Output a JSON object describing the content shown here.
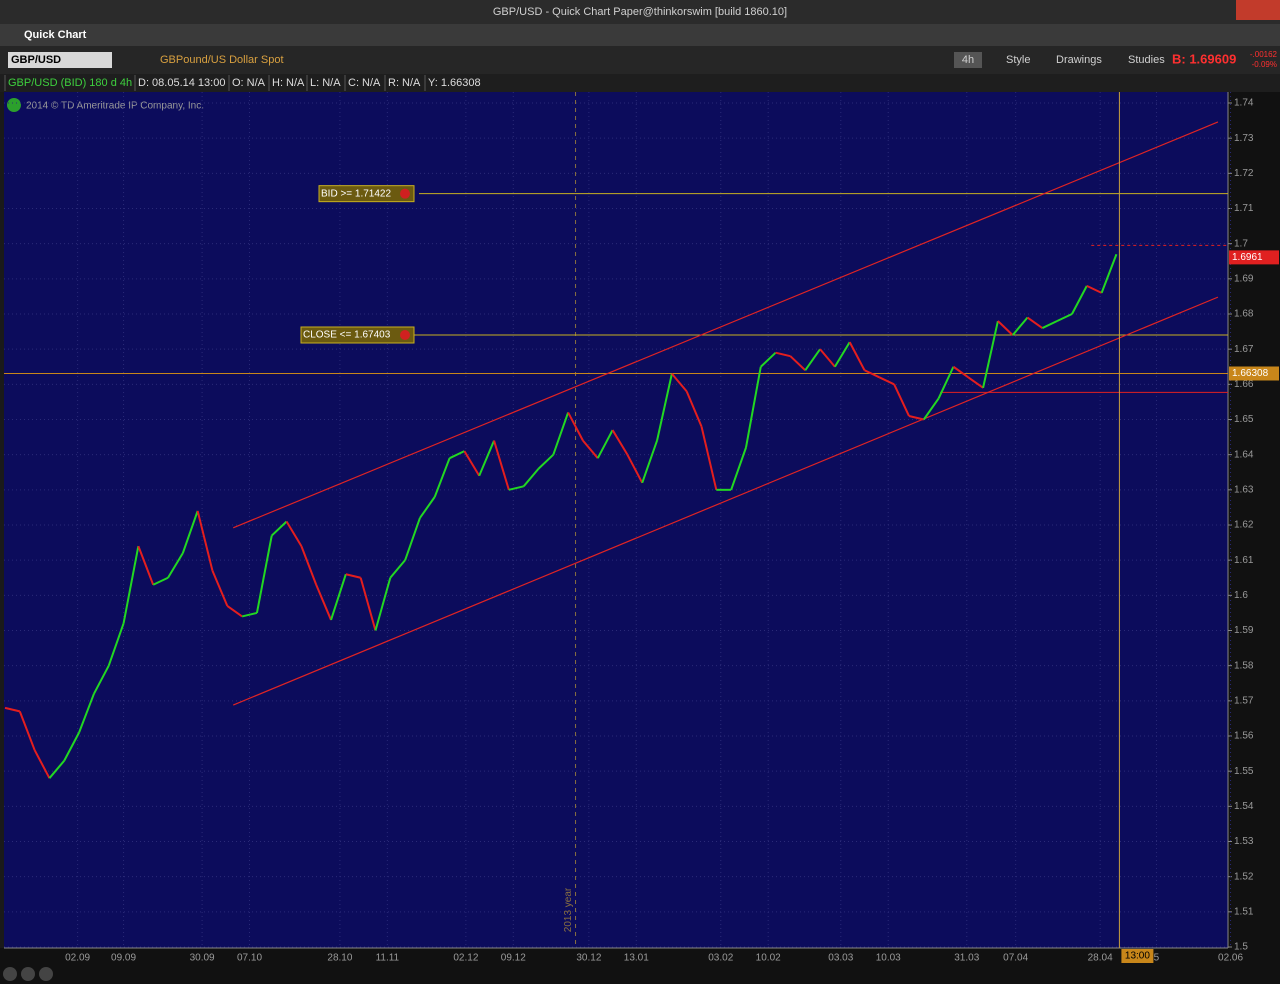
{
  "window": {
    "title": "GBP/USD - Quick Chart Paper@thinkorswim [build 1860.10]",
    "panel": "Quick Chart"
  },
  "toolbar": {
    "symbol": "GBP/USD",
    "description": "GBPound/US Dollar Spot",
    "aggregation": "4h",
    "style": "Style",
    "drawings": "Drawings",
    "studies": "Studies",
    "bid": "B: 1.69609",
    "change": "-.00162",
    "change_pct": "-0.09%"
  },
  "info": [
    "GBP/USD (BID) 180 d 4h",
    "D: 08.05.14 13:00",
    "O: N/A",
    "H: N/A",
    "L: N/A",
    "C: N/A",
    "R: N/A",
    "Y: 1.66308"
  ],
  "copyright": "2014 © TD Ameritrade IP Company, Inc.",
  "chart_data": {
    "type": "line",
    "x": [
      0,
      1,
      2,
      3,
      4,
      5,
      6,
      7,
      8,
      9,
      10,
      11,
      12,
      13,
      14,
      15,
      16,
      17,
      18,
      19,
      20,
      21,
      22,
      23,
      24,
      25,
      26,
      27,
      28,
      29,
      30,
      31,
      32,
      33,
      34,
      35,
      36,
      37,
      38,
      39,
      40,
      41,
      42,
      43,
      44,
      45,
      46,
      47,
      48,
      49,
      50,
      51,
      52,
      53,
      54,
      55,
      56,
      57,
      58,
      59,
      60,
      61,
      62,
      63,
      64,
      65,
      66,
      67,
      68,
      69,
      70,
      71,
      72,
      73,
      74,
      75
    ],
    "values": [
      1.568,
      1.567,
      1.556,
      1.548,
      1.553,
      1.561,
      1.572,
      1.58,
      1.592,
      1.614,
      1.603,
      1.605,
      1.612,
      1.624,
      1.607,
      1.597,
      1.594,
      1.595,
      1.617,
      1.621,
      1.614,
      1.603,
      1.593,
      1.606,
      1.605,
      1.59,
      1.605,
      1.61,
      1.622,
      1.628,
      1.639,
      1.641,
      1.634,
      1.644,
      1.63,
      1.631,
      1.636,
      1.64,
      1.652,
      1.644,
      1.639,
      1.647,
      1.64,
      1.632,
      1.644,
      1.663,
      1.658,
      1.648,
      1.63,
      1.63,
      1.642,
      1.665,
      1.669,
      1.668,
      1.664,
      1.67,
      1.665,
      1.672,
      1.664,
      1.662,
      1.66,
      1.651,
      1.65,
      1.656,
      1.665,
      1.662,
      1.659,
      1.678,
      1.674,
      1.679,
      1.676,
      1.678,
      1.68,
      1.688,
      1.686,
      1.697
    ],
    "colors": {
      "up": "#22d822",
      "down": "#e41e1e"
    },
    "xlim": [
      0,
      83
    ],
    "xticks": [
      {
        "value": 4.9,
        "label": "02.09"
      },
      {
        "value": 8.0,
        "label": "09.09"
      },
      {
        "value": 13.3,
        "label": "30.09"
      },
      {
        "value": 16.5,
        "label": "07.10"
      },
      {
        "value": 22.6,
        "label": "28.10"
      },
      {
        "value": 25.8,
        "label": "11.11"
      },
      {
        "value": 31.1,
        "label": "02.12"
      },
      {
        "value": 34.3,
        "label": "09.12"
      },
      {
        "value": 39.4,
        "label": "30.12"
      },
      {
        "value": 42.6,
        "label": "13.01"
      },
      {
        "value": 48.3,
        "label": "03.02"
      },
      {
        "value": 51.5,
        "label": "10.02"
      },
      {
        "value": 56.4,
        "label": "03.03"
      },
      {
        "value": 59.6,
        "label": "10.03"
      },
      {
        "value": 64.9,
        "label": "31.03"
      },
      {
        "value": 68.2,
        "label": "07.04"
      },
      {
        "value": 73.9,
        "label": "28.04"
      },
      {
        "value": 77.7,
        "label": "5"
      },
      {
        "value": 82.7,
        "label": "02.06"
      }
    ],
    "ylim": [
      1.5,
      1.74
    ],
    "yticks": [
      1.5,
      1.51,
      1.52,
      1.53,
      1.54,
      1.55,
      1.56,
      1.57,
      1.58,
      1.59,
      1.6,
      1.61,
      1.62,
      1.63,
      1.64,
      1.65,
      1.66,
      1.67,
      1.68,
      1.69,
      1.7,
      1.71,
      1.72,
      1.73,
      1.74
    ],
    "grid": true,
    "trendlines": [
      {
        "x": [
          15.4,
          81.85
        ],
        "y": [
          1.6192,
          1.7346
        ]
      },
      {
        "x": [
          15.4,
          81.85
        ],
        "y": [
          1.5688,
          1.6848
        ]
      }
    ],
    "trendline_color": "#e02424",
    "alerts": [
      {
        "label": "BID >= 1.71422",
        "value": 1.71422
      },
      {
        "label": "CLOSE <= 1.67403",
        "value": 1.67403
      }
    ],
    "price_markers": [
      {
        "value": 1.6961,
        "label": "1.6961",
        "color": "#e02020"
      },
      {
        "value": 1.66308,
        "label": "1.66308",
        "color": "#c8861a"
      }
    ],
    "year_marker": {
      "x": 38.5,
      "label": "2013 year"
    },
    "cursor": {
      "x": 75.2,
      "label": "13:00"
    },
    "level_lines": [
      {
        "value": 1.6577,
        "from": 63.1
      },
      {
        "value": 1.6995,
        "from": 73.3
      }
    ]
  }
}
